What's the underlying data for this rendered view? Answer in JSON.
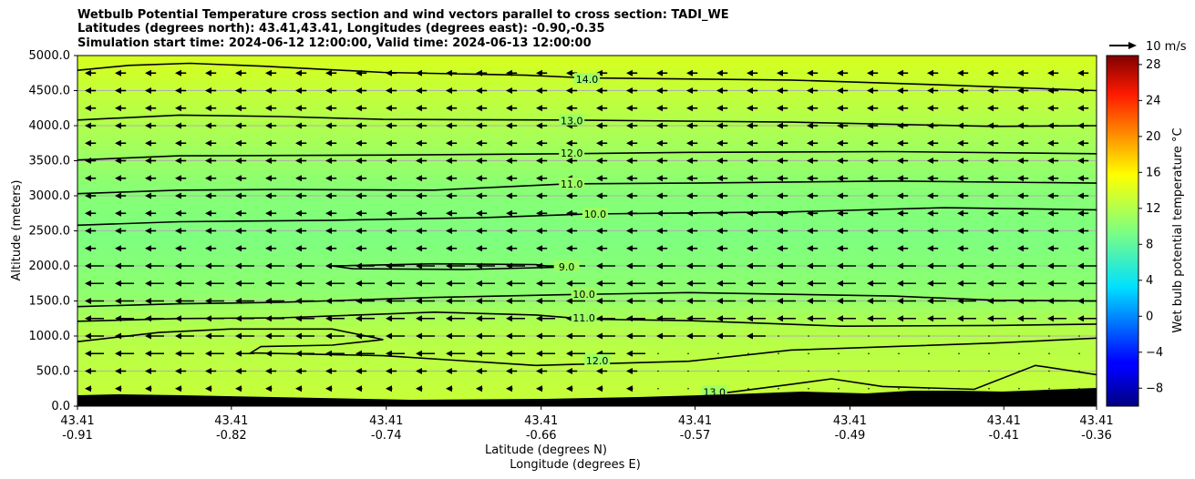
{
  "chart_data": {
    "type": "heatmap",
    "title_lines": [
      "Wetbulb Potential Temperature cross section and wind vectors parallel to cross section: TADI_WE",
      "Latitudes (degrees north): 43.41,43.41, Longitudes (degrees east): -0.90,-0.35",
      "Simulation start time: 2024-06-12 12:00:00, Valid time: 2024-06-13 12:00:00"
    ],
    "ylabel": "Altitude (meters)",
    "xlabel_lat": "Latitude (degrees N)",
    "xlabel_lon": "Longitude (degrees E)",
    "ylim": [
      0,
      5000
    ],
    "y_ticks": [
      "0.0",
      "500.0",
      "1000.0",
      "1500.0",
      "2000.0",
      "2500.0",
      "3000.0",
      "3500.0",
      "4000.0",
      "4500.0",
      "5000.0"
    ],
    "x_ticks": [
      {
        "lat": "43.41",
        "lon": "-0.91"
      },
      {
        "lat": "43.41",
        "lon": "-0.82"
      },
      {
        "lat": "43.41",
        "lon": "-0.74"
      },
      {
        "lat": "43.41",
        "lon": "-0.66"
      },
      {
        "lat": "43.41",
        "lon": "-0.57"
      },
      {
        "lat": "43.41",
        "lon": "-0.49"
      },
      {
        "lat": "43.41",
        "lon": "-0.41"
      },
      {
        "lat": "43.41",
        "lon": "-0.36"
      }
    ],
    "x_positions": [
      0,
      0.151,
      0.303,
      0.455,
      0.606,
      0.758,
      0.909,
      1.0
    ],
    "colorbar": {
      "label": "Wet bulb potential temperature $^\\circ$C",
      "label_display": "Wet bulb potential temperature °C",
      "ticks": [
        "−8",
        "−4",
        "0",
        "4",
        "8",
        "12",
        "16",
        "20",
        "24",
        "28"
      ],
      "tick_values": [
        -8,
        -4,
        0,
        4,
        8,
        12,
        16,
        20,
        24,
        28
      ],
      "range": [
        -10,
        29
      ],
      "colormap": "jet"
    },
    "quiver_key": "10 m/s",
    "contours": [
      {
        "level": 14.0,
        "label": "14.0",
        "points": [
          [
            0,
            4790
          ],
          [
            0.05,
            4860
          ],
          [
            0.11,
            4890
          ],
          [
            0.18,
            4850
          ],
          [
            0.3,
            4760
          ],
          [
            0.44,
            4720
          ],
          [
            0.5,
            4680
          ],
          [
            0.7,
            4650
          ],
          [
            0.85,
            4580
          ],
          [
            1,
            4500
          ]
        ],
        "label_at": [
          0.5,
          4660
        ]
      },
      {
        "level": 13.0,
        "label": "13.0",
        "points": [
          [
            0,
            4080
          ],
          [
            0.1,
            4150
          ],
          [
            0.2,
            4130
          ],
          [
            0.3,
            4090
          ],
          [
            0.48,
            4080
          ],
          [
            0.7,
            4050
          ],
          [
            0.9,
            3990
          ],
          [
            1,
            4000
          ]
        ],
        "label_at": [
          0.485,
          4070
        ]
      },
      {
        "level": 12.0,
        "label": "12.0",
        "points": [
          [
            0,
            3510
          ],
          [
            0.1,
            3570
          ],
          [
            0.3,
            3580
          ],
          [
            0.48,
            3600
          ],
          [
            0.6,
            3620
          ],
          [
            0.8,
            3630
          ],
          [
            1,
            3600
          ]
        ],
        "label_at": [
          0.485,
          3610
        ]
      },
      {
        "level": 11.0,
        "label": "11.0",
        "points": [
          [
            0,
            3030
          ],
          [
            0.1,
            3080
          ],
          [
            0.2,
            3090
          ],
          [
            0.35,
            3080
          ],
          [
            0.48,
            3170
          ],
          [
            0.6,
            3180
          ],
          [
            0.8,
            3210
          ],
          [
            1,
            3180
          ]
        ],
        "label_at": [
          0.485,
          3170
        ]
      },
      {
        "level": 10.0,
        "label": "10.0",
        "points": [
          [
            0,
            2580
          ],
          [
            0.1,
            2630
          ],
          [
            0.25,
            2650
          ],
          [
            0.4,
            2690
          ],
          [
            0.5,
            2740
          ],
          [
            0.7,
            2770
          ],
          [
            0.85,
            2830
          ],
          [
            1,
            2800
          ]
        ],
        "label_at": [
          0.508,
          2740
        ]
      },
      {
        "level": 9.0,
        "label": "9.0",
        "points": [
          [
            0.25,
            2000
          ],
          [
            0.35,
            2030
          ],
          [
            0.45,
            2020
          ],
          [
            0.47,
            1980
          ],
          [
            0.38,
            1950
          ],
          [
            0.27,
            1960
          ],
          [
            0.25,
            2000
          ]
        ],
        "label_at": [
          0.48,
          1990
        ]
      },
      {
        "level": 10.0,
        "label": "10.0",
        "points": [
          [
            0,
            1420
          ],
          [
            0.1,
            1460
          ],
          [
            0.2,
            1480
          ],
          [
            0.35,
            1550
          ],
          [
            0.48,
            1590
          ],
          [
            0.6,
            1620
          ],
          [
            0.8,
            1570
          ],
          [
            0.9,
            1510
          ],
          [
            1,
            1500
          ]
        ],
        "label_at": [
          0.497,
          1600
        ]
      },
      {
        "level": 11.0,
        "label": "11.0",
        "points": [
          [
            0,
            1210
          ],
          [
            0.1,
            1250
          ],
          [
            0.2,
            1260
          ],
          [
            0.35,
            1340
          ],
          [
            0.45,
            1300
          ],
          [
            0.5,
            1240
          ],
          [
            0.6,
            1220
          ],
          [
            0.75,
            1140
          ],
          [
            0.9,
            1150
          ],
          [
            1,
            1170
          ]
        ],
        "label_at": [
          0.497,
          1260
        ]
      },
      {
        "level": 12.0,
        "label": "12.0",
        "points": [
          [
            0,
            920
          ],
          [
            0.08,
            1050
          ],
          [
            0.15,
            1100
          ],
          [
            0.25,
            1100
          ],
          [
            0.3,
            950
          ],
          [
            0.25,
            870
          ],
          [
            0.18,
            850
          ],
          [
            0.17,
            760
          ],
          [
            0.3,
            720
          ],
          [
            0.45,
            580
          ],
          [
            0.6,
            640
          ],
          [
            0.7,
            800
          ],
          [
            0.8,
            850
          ],
          [
            0.9,
            900
          ],
          [
            1,
            970
          ]
        ],
        "label_at": [
          0.51,
          650
        ]
      },
      {
        "level": 13.0,
        "label": "13.0",
        "points": [
          [
            0.62,
            160
          ],
          [
            0.7,
            310
          ],
          [
            0.74,
            390
          ],
          [
            0.79,
            280
          ],
          [
            0.88,
            240
          ],
          [
            0.94,
            580
          ],
          [
            1,
            450
          ]
        ],
        "label_at": [
          0.625,
          200
        ]
      }
    ]
  }
}
